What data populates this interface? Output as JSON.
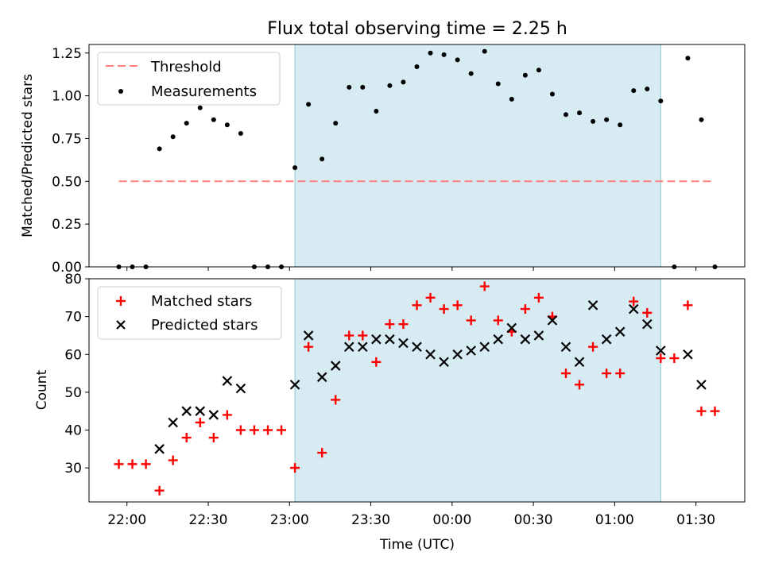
{
  "title": "Flux total observing time = 2.25 h",
  "chart_data": [
    {
      "type": "scatter",
      "ylabel": "Matched/Predicted stars",
      "ylim": [
        0,
        1.3
      ],
      "yticks": [
        "0.00",
        "0.25",
        "0.50",
        "0.75",
        "1.00",
        "1.25"
      ],
      "legend_position": "upper-left",
      "shaded_interval": [
        "23:02",
        "01:17"
      ],
      "threshold": {
        "name": "Threshold",
        "value": 0.5,
        "x_range": [
          "21:57",
          "01:37"
        ],
        "color": "#ff7f7f"
      },
      "series": [
        {
          "name": "Measurements",
          "color": "#000000",
          "marker": "dot",
          "points": [
            [
              "21:57",
              0.0
            ],
            [
              "22:02",
              0.0
            ],
            [
              "22:07",
              0.0
            ],
            [
              "22:12",
              0.69
            ],
            [
              "22:17",
              0.76
            ],
            [
              "22:22",
              0.84
            ],
            [
              "22:27",
              0.93
            ],
            [
              "22:32",
              0.86
            ],
            [
              "22:37",
              0.83
            ],
            [
              "22:42",
              0.78
            ],
            [
              "22:47",
              0.0
            ],
            [
              "22:52",
              0.0
            ],
            [
              "22:57",
              0.0
            ],
            [
              "23:02",
              0.58
            ],
            [
              "23:07",
              0.95
            ],
            [
              "23:12",
              0.63
            ],
            [
              "23:17",
              0.84
            ],
            [
              "23:22",
              1.05
            ],
            [
              "23:27",
              1.05
            ],
            [
              "23:32",
              0.91
            ],
            [
              "23:37",
              1.06
            ],
            [
              "23:42",
              1.08
            ],
            [
              "23:47",
              1.17
            ],
            [
              "23:52",
              1.25
            ],
            [
              "23:57",
              1.24
            ],
            [
              "00:02",
              1.21
            ],
            [
              "00:07",
              1.13
            ],
            [
              "00:12",
              1.26
            ],
            [
              "00:17",
              1.07
            ],
            [
              "00:22",
              0.98
            ],
            [
              "00:27",
              1.12
            ],
            [
              "00:32",
              1.15
            ],
            [
              "00:37",
              1.01
            ],
            [
              "00:42",
              0.89
            ],
            [
              "00:47",
              0.9
            ],
            [
              "00:52",
              0.85
            ],
            [
              "00:57",
              0.86
            ],
            [
              "01:02",
              0.83
            ],
            [
              "01:07",
              1.03
            ],
            [
              "01:12",
              1.04
            ],
            [
              "01:17",
              0.97
            ],
            [
              "01:22",
              0.0
            ],
            [
              "01:27",
              1.22
            ],
            [
              "01:32",
              0.86
            ],
            [
              "01:37",
              0.0
            ]
          ]
        }
      ]
    },
    {
      "type": "scatter",
      "xlabel": "Time (UTC)",
      "ylabel": "Count",
      "ylim": [
        21,
        80
      ],
      "yticks": [
        "30",
        "40",
        "50",
        "60",
        "70",
        "80"
      ],
      "xticks": [
        "22:00",
        "22:30",
        "23:00",
        "23:30",
        "00:00",
        "00:30",
        "01:00",
        "01:30"
      ],
      "legend_position": "upper-left",
      "shaded_interval": [
        "23:02",
        "01:17"
      ],
      "series": [
        {
          "name": "Matched stars",
          "color": "#ff0000",
          "marker": "plus",
          "points": [
            [
              "21:57",
              31
            ],
            [
              "22:02",
              31
            ],
            [
              "22:07",
              31
            ],
            [
              "22:12",
              24
            ],
            [
              "22:17",
              32
            ],
            [
              "22:22",
              38
            ],
            [
              "22:27",
              42
            ],
            [
              "22:32",
              38
            ],
            [
              "22:37",
              44
            ],
            [
              "22:42",
              40
            ],
            [
              "22:47",
              40
            ],
            [
              "22:52",
              40
            ],
            [
              "22:57",
              40
            ],
            [
              "23:02",
              30
            ],
            [
              "23:07",
              62
            ],
            [
              "23:12",
              34
            ],
            [
              "23:17",
              48
            ],
            [
              "23:22",
              65
            ],
            [
              "23:27",
              65
            ],
            [
              "23:32",
              58
            ],
            [
              "23:37",
              68
            ],
            [
              "23:42",
              68
            ],
            [
              "23:47",
              73
            ],
            [
              "23:52",
              75
            ],
            [
              "23:57",
              72
            ],
            [
              "00:02",
              73
            ],
            [
              "00:07",
              69
            ],
            [
              "00:12",
              78
            ],
            [
              "00:17",
              69
            ],
            [
              "00:22",
              66
            ],
            [
              "00:27",
              72
            ],
            [
              "00:32",
              75
            ],
            [
              "00:37",
              70
            ],
            [
              "00:42",
              55
            ],
            [
              "00:47",
              52
            ],
            [
              "00:52",
              62
            ],
            [
              "00:57",
              55
            ],
            [
              "01:02",
              55
            ],
            [
              "01:07",
              74
            ],
            [
              "01:12",
              71
            ],
            [
              "01:17",
              59
            ],
            [
              "01:22",
              59
            ],
            [
              "01:27",
              73
            ],
            [
              "01:32",
              45
            ],
            [
              "01:37",
              45
            ]
          ]
        },
        {
          "name": "Predicted stars",
          "color": "#000000",
          "marker": "x",
          "points": [
            [
              "22:12",
              35
            ],
            [
              "22:17",
              42
            ],
            [
              "22:22",
              45
            ],
            [
              "22:27",
              45
            ],
            [
              "22:32",
              44
            ],
            [
              "22:37",
              53
            ],
            [
              "22:42",
              51
            ],
            [
              "23:02",
              52
            ],
            [
              "23:07",
              65
            ],
            [
              "23:12",
              54
            ],
            [
              "23:17",
              57
            ],
            [
              "23:22",
              62
            ],
            [
              "23:27",
              62
            ],
            [
              "23:32",
              64
            ],
            [
              "23:37",
              64
            ],
            [
              "23:42",
              63
            ],
            [
              "23:47",
              62
            ],
            [
              "23:52",
              60
            ],
            [
              "23:57",
              58
            ],
            [
              "00:02",
              60
            ],
            [
              "00:07",
              61
            ],
            [
              "00:12",
              62
            ],
            [
              "00:17",
              64
            ],
            [
              "00:22",
              67
            ],
            [
              "00:27",
              64
            ],
            [
              "00:32",
              65
            ],
            [
              "00:37",
              69
            ],
            [
              "00:42",
              62
            ],
            [
              "00:47",
              58
            ],
            [
              "00:52",
              73
            ],
            [
              "00:57",
              64
            ],
            [
              "01:02",
              66
            ],
            [
              "01:07",
              72
            ],
            [
              "01:12",
              68
            ],
            [
              "01:17",
              61
            ],
            [
              "01:27",
              60
            ],
            [
              "01:32",
              52
            ]
          ]
        }
      ]
    }
  ]
}
